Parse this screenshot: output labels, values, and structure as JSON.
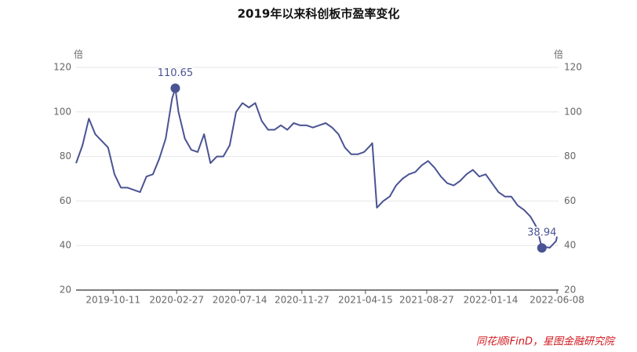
{
  "chart_data": {
    "type": "line",
    "title": "2019年以来科创板市盈率变化",
    "ylabel": "倍",
    "y2label": "倍",
    "source": "同花顺iFinD，星图金融研究院",
    "x": [
      "2019-07-22",
      "2019-08-05",
      "2019-08-19",
      "2019-09-02",
      "2019-09-16",
      "2019-09-30",
      "2019-10-14",
      "2019-10-28",
      "2019-11-11",
      "2019-11-25",
      "2019-12-09",
      "2019-12-23",
      "2020-01-06",
      "2020-01-20",
      "2020-02-03",
      "2020-02-17",
      "2020-02-24",
      "2020-03-02",
      "2020-03-16",
      "2020-03-30",
      "2020-04-13",
      "2020-04-27",
      "2020-05-11",
      "2020-05-25",
      "2020-06-08",
      "2020-06-22",
      "2020-07-06",
      "2020-07-20",
      "2020-08-03",
      "2020-08-17",
      "2020-08-31",
      "2020-09-14",
      "2020-09-28",
      "2020-10-12",
      "2020-10-26",
      "2020-11-09",
      "2020-11-23",
      "2020-12-07",
      "2020-12-21",
      "2021-01-04",
      "2021-01-18",
      "2021-02-01",
      "2021-02-15",
      "2021-03-01",
      "2021-03-15",
      "2021-03-29",
      "2021-04-12",
      "2021-04-26",
      "2021-04-30",
      "2021-05-10",
      "2021-05-24",
      "2021-06-07",
      "2021-06-21",
      "2021-07-05",
      "2021-07-19",
      "2021-08-02",
      "2021-08-16",
      "2021-08-30",
      "2021-09-13",
      "2021-09-27",
      "2021-10-11",
      "2021-10-25",
      "2021-11-08",
      "2021-11-22",
      "2021-12-06",
      "2021-12-20",
      "2022-01-03",
      "2022-01-17",
      "2022-01-31",
      "2022-02-14",
      "2022-02-28",
      "2022-03-14",
      "2022-03-28",
      "2022-04-11",
      "2022-04-25",
      "2022-05-06",
      "2022-05-09",
      "2022-05-23",
      "2022-06-06",
      "2022-06-08"
    ],
    "series": [
      {
        "name": "科创板市盈率",
        "color": "#4a5394",
        "values": [
          77,
          85,
          97,
          90,
          87,
          84,
          72,
          66,
          66,
          65,
          64,
          71,
          72,
          79,
          88,
          106,
          110.65,
          100,
          88,
          83,
          82,
          90,
          77,
          80,
          80,
          85,
          100,
          104,
          102,
          104,
          96,
          92,
          92,
          94,
          92,
          95,
          94,
          94,
          93,
          94,
          95,
          93,
          90,
          84,
          81,
          81,
          82,
          85,
          86,
          57,
          60,
          62,
          67,
          70,
          72,
          73,
          76,
          78,
          75,
          71,
          68,
          67,
          69,
          72,
          74,
          71,
          72,
          68,
          64,
          62,
          62,
          58,
          56,
          53,
          48,
          38.94,
          39.5,
          39,
          42,
          44
        ],
        "value_labels": [
          null,
          null,
          null,
          null,
          null,
          null,
          null,
          null,
          null,
          null,
          null,
          null,
          null,
          null,
          null,
          null,
          "110.65",
          null,
          null,
          null,
          null,
          null,
          null,
          null,
          null,
          null,
          null,
          null,
          null,
          null,
          null,
          null,
          null,
          null,
          null,
          null,
          null,
          null,
          null,
          null,
          null,
          null,
          null,
          null,
          null,
          null,
          null,
          null,
          null,
          null,
          null,
          null,
          null,
          null,
          null,
          null,
          null,
          null,
          null,
          null,
          null,
          null,
          null,
          null,
          null,
          null,
          null,
          null,
          null,
          null,
          null,
          null,
          null,
          null,
          null,
          "38.94",
          null,
          null,
          null,
          null
        ]
      }
    ],
    "xlim": [
      "2019-07-22",
      "2022-06-08"
    ],
    "xticks": [
      "2019-10-11",
      "2020-02-27",
      "2020-07-14",
      "2020-11-27",
      "2021-04-15",
      "2021-08-27",
      "2022-01-14",
      "2022-06-08"
    ],
    "ylim": [
      20,
      120
    ],
    "yticks": [
      20,
      40,
      60,
      80,
      100,
      120
    ],
    "y2lim": [
      20,
      120
    ],
    "y2ticks": [
      20,
      40,
      60,
      80,
      100,
      120
    ],
    "grid": true
  }
}
